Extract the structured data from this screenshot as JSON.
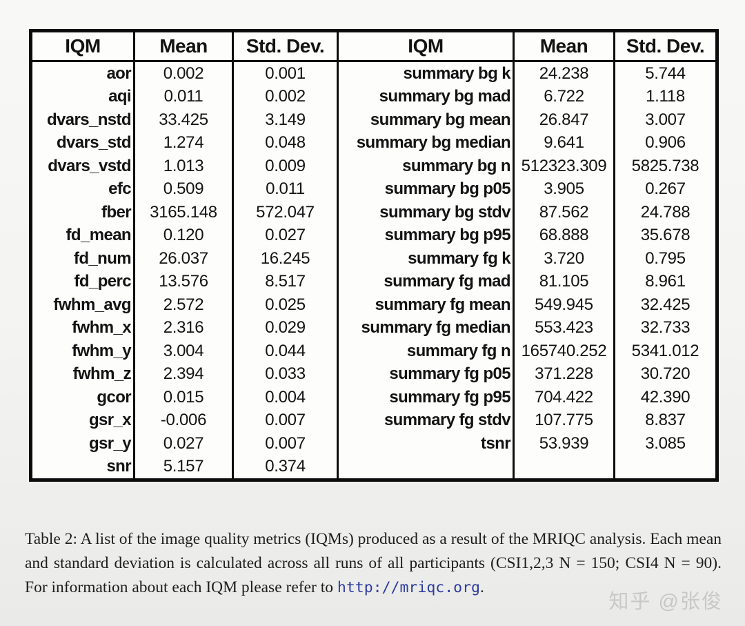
{
  "table": {
    "headers": [
      "IQM",
      "Mean",
      "Std. Dev.",
      "IQM",
      "Mean",
      "Std. Dev."
    ],
    "rows": [
      {
        "left": [
          "aor",
          "0.002",
          "0.001"
        ],
        "right": [
          "summary bg k",
          "24.238",
          "5.744"
        ]
      },
      {
        "left": [
          "aqi",
          "0.011",
          "0.002"
        ],
        "right": [
          "summary bg mad",
          "6.722",
          "1.118"
        ]
      },
      {
        "left": [
          "dvars_nstd",
          "33.425",
          "3.149"
        ],
        "right": [
          "summary bg mean",
          "26.847",
          "3.007"
        ]
      },
      {
        "left": [
          "dvars_std",
          "1.274",
          "0.048"
        ],
        "right": [
          "summary bg median",
          "9.641",
          "0.906"
        ]
      },
      {
        "left": [
          "dvars_vstd",
          "1.013",
          "0.009"
        ],
        "right": [
          "summary bg n",
          "512323.309",
          "5825.738"
        ]
      },
      {
        "left": [
          "efc",
          "0.509",
          "0.011"
        ],
        "right": [
          "summary bg p05",
          "3.905",
          "0.267"
        ]
      },
      {
        "left": [
          "fber",
          "3165.148",
          "572.047"
        ],
        "right": [
          "summary bg stdv",
          "87.562",
          "24.788"
        ]
      },
      {
        "left": [
          "fd_mean",
          "0.120",
          "0.027"
        ],
        "right": [
          "summary bg p95",
          "68.888",
          "35.678"
        ]
      },
      {
        "left": [
          "fd_num",
          "26.037",
          "16.245"
        ],
        "right": [
          "summary fg k",
          "3.720",
          "0.795"
        ]
      },
      {
        "left": [
          "fd_perc",
          "13.576",
          "8.517"
        ],
        "right": [
          "summary fg mad",
          "81.105",
          "8.961"
        ]
      },
      {
        "left": [
          "fwhm_avg",
          "2.572",
          "0.025"
        ],
        "right": [
          "summary fg mean",
          "549.945",
          "32.425"
        ]
      },
      {
        "left": [
          "fwhm_x",
          "2.316",
          "0.029"
        ],
        "right": [
          "summary fg median",
          "553.423",
          "32.733"
        ]
      },
      {
        "left": [
          "fwhm_y",
          "3.004",
          "0.044"
        ],
        "right": [
          "summary fg n",
          "165740.252",
          "5341.012"
        ]
      },
      {
        "left": [
          "fwhm_z",
          "2.394",
          "0.033"
        ],
        "right": [
          "summary fg p05",
          "371.228",
          "30.720"
        ]
      },
      {
        "left": [
          "gcor",
          "0.015",
          "0.004"
        ],
        "right": [
          "summary fg p95",
          "704.422",
          "42.390"
        ]
      },
      {
        "left": [
          "gsr_x",
          "-0.006",
          "0.007"
        ],
        "right": [
          "summary fg stdv",
          "107.775",
          "8.837"
        ]
      },
      {
        "left": [
          "gsr_y",
          "0.027",
          "0.007"
        ],
        "right": [
          "tsnr",
          "53.939",
          "3.085"
        ]
      },
      {
        "left": [
          "snr",
          "5.157",
          "0.374"
        ],
        "right": [
          "",
          "",
          ""
        ]
      }
    ]
  },
  "caption": {
    "text_before_link": "Table 2:  A list of the image quality metrics (IQMs) produced as a result of the MRIQC analysis.  Each mean and standard deviation is calculated across all runs of all participants (CSI1,2,3 N = 150; CSI4 N = 90).  For information about each IQM please refer to ",
    "link_text": "http://mriqc.org",
    "text_after_link": ".",
    "link_color": "#2b3aa0"
  },
  "watermark": {
    "text": "知乎 @张俊",
    "color": "#c8c8c5"
  }
}
